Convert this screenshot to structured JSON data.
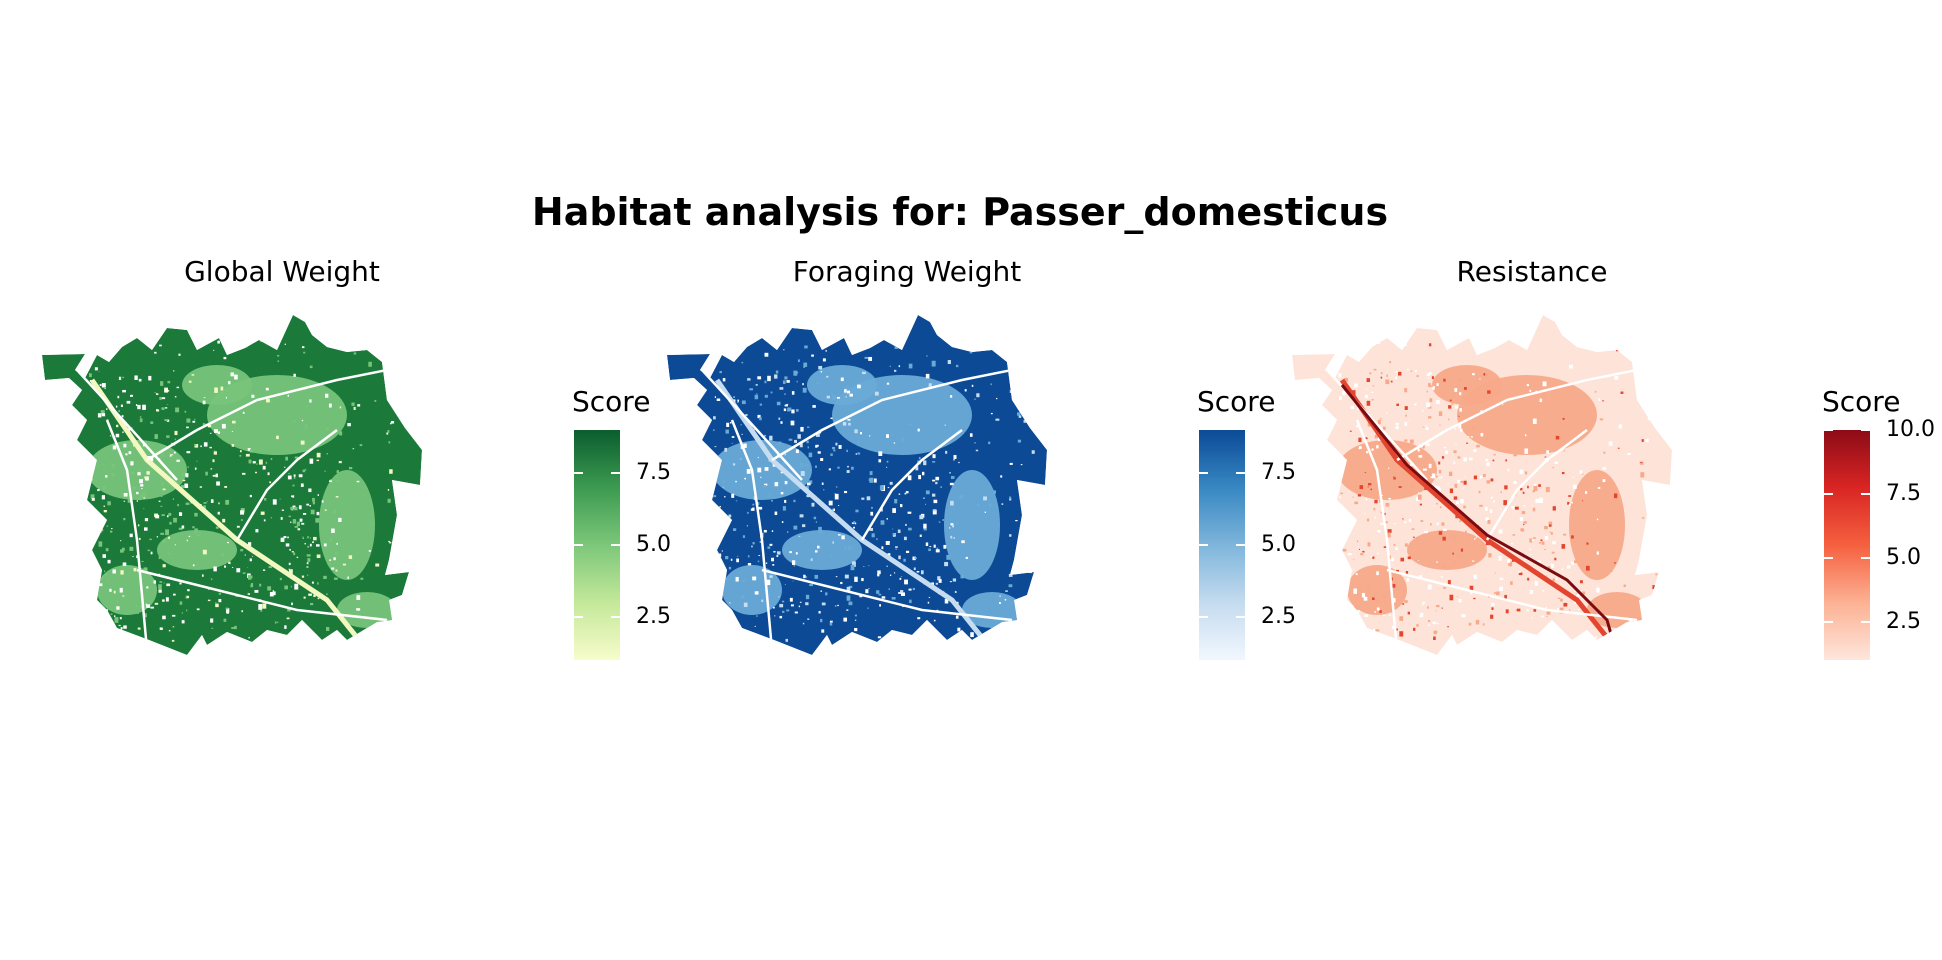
{
  "title": "Habitat analysis for: Passer_domesticus",
  "panels": [
    {
      "title": "Global Weight",
      "legend": {
        "title": "Score",
        "range": [
          1,
          9
        ],
        "ticks": [
          "7.5",
          "5.0",
          "2.5"
        ],
        "tick_values": [
          7.5,
          5.0,
          2.5
        ],
        "colors": [
          "#0b5d2e",
          "#3c9a50",
          "#7cc77a",
          "#c4e89a",
          "#f7fccb"
        ]
      },
      "map": {
        "base": "#1b7a3a",
        "mid": "#77c47a",
        "light": "#f3f8c0",
        "road": "#ffffff"
      }
    },
    {
      "title": "Foraging Weight",
      "legend": {
        "title": "Score",
        "range": [
          1,
          9
        ],
        "ticks": [
          "7.5",
          "5.0",
          "2.5"
        ],
        "tick_values": [
          7.5,
          5.0,
          2.5
        ],
        "colors": [
          "#0b4a97",
          "#3787c2",
          "#7eb5db",
          "#c4dbef",
          "#f2f7fe"
        ]
      },
      "map": {
        "base": "#0c4a96",
        "mid": "#6aaad6",
        "light": "#c6dcf0",
        "road": "#ffffff"
      }
    },
    {
      "title": "Resistance",
      "legend": {
        "title": "Score",
        "range": [
          1,
          10
        ],
        "ticks": [
          "10.0",
          "7.5",
          "5.0",
          "2.5"
        ],
        "tick_values": [
          10.0,
          7.5,
          5.0,
          2.5
        ],
        "colors": [
          "#8c0b16",
          "#d92523",
          "#f5603f",
          "#fcb193",
          "#fee6dc"
        ]
      },
      "map": {
        "base": "#fde3d8",
        "mid": "#f7a98a",
        "light": "#e3452f",
        "road": "#ffffff"
      }
    }
  ]
}
